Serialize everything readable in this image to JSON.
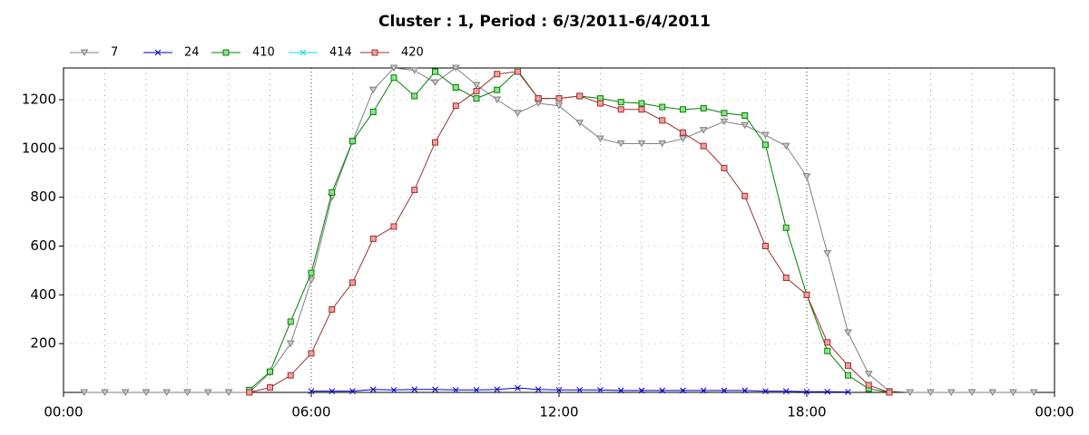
{
  "chart_data": {
    "type": "line",
    "title": "Cluster : 1, Period : 6/3/2011-6/4/2011",
    "x": [
      0.5,
      1,
      1.5,
      2,
      2.5,
      3,
      3.5,
      4,
      4.5,
      5,
      5.5,
      6,
      6.5,
      7,
      7.5,
      8,
      8.5,
      9,
      9.5,
      10,
      10.5,
      11,
      11.5,
      12,
      12.5,
      13,
      13.5,
      14,
      14.5,
      15,
      15.5,
      16,
      16.5,
      17,
      17.5,
      18,
      18.5,
      19,
      19.5,
      20,
      20.5,
      21,
      21.5,
      22,
      22.5,
      23,
      23.5
    ],
    "xlim": [
      0,
      24
    ],
    "xticks": [
      {
        "value": 0,
        "label": "00:00"
      },
      {
        "value": 6,
        "label": "06:00"
      },
      {
        "value": 12,
        "label": "12:00"
      },
      {
        "value": 18,
        "label": "18:00"
      },
      {
        "value": 24,
        "label": "00:00"
      }
    ],
    "x_minor_ticks": [
      1,
      2,
      3,
      4,
      5,
      7,
      8,
      9,
      10,
      11,
      13,
      14,
      15,
      16,
      17,
      19,
      20,
      21,
      22,
      23
    ],
    "ylim": [
      0,
      1330
    ],
    "yticks": [
      200,
      400,
      600,
      800,
      1000,
      1200
    ],
    "grid": true,
    "legend": "top-left",
    "series": [
      {
        "name": "7",
        "color": "#808080",
        "fill": "#c8c8c8",
        "marker": "triangle-down",
        "values": [
          0,
          0,
          0,
          0,
          0,
          0,
          0,
          0,
          0,
          80,
          200,
          460,
          800,
          1030,
          1240,
          1330,
          1320,
          1270,
          1330,
          1260,
          1200,
          1145,
          1185,
          1175,
          1105,
          1040,
          1020,
          1020,
          1020,
          1040,
          1075,
          1110,
          1095,
          1055,
          1010,
          885,
          570,
          245,
          75,
          5,
          0,
          0,
          0,
          0,
          0,
          0,
          0
        ]
      },
      {
        "name": "24",
        "color": "#0000c0",
        "fill": "#0000c0",
        "marker": "x",
        "values": [
          null,
          null,
          null,
          null,
          null,
          null,
          null,
          null,
          null,
          null,
          null,
          5,
          5,
          5,
          12,
          10,
          12,
          12,
          10,
          10,
          12,
          18,
          12,
          10,
          10,
          10,
          8,
          8,
          8,
          8,
          8,
          8,
          8,
          5,
          5,
          3,
          3,
          2,
          null,
          null,
          null,
          null,
          null,
          null,
          null,
          null,
          null
        ]
      },
      {
        "name": "410",
        "color": "#008000",
        "fill": "#90e090",
        "marker": "square",
        "values": [
          null,
          null,
          null,
          null,
          null,
          null,
          null,
          null,
          10,
          85,
          290,
          490,
          820,
          1030,
          1150,
          1290,
          1215,
          1315,
          1250,
          1205,
          1240,
          1320,
          1205,
          1205,
          1215,
          1205,
          1190,
          1185,
          1170,
          1160,
          1165,
          1145,
          1135,
          1015,
          675,
          400,
          170,
          70,
          15,
          0,
          null,
          null,
          null,
          null,
          null,
          null,
          null
        ]
      },
      {
        "name": "414",
        "color": "#00e0e0",
        "fill": "#00e0e0",
        "marker": "x",
        "values": [
          null,
          null,
          null,
          null,
          null,
          null,
          null,
          null,
          null,
          null,
          null,
          null,
          null,
          null,
          null,
          null,
          null,
          null,
          null,
          null,
          null,
          null,
          null,
          null,
          null,
          null,
          null,
          null,
          null,
          null,
          null,
          null,
          null,
          null,
          null,
          null,
          null,
          null,
          null,
          null,
          null,
          null,
          null,
          null,
          null,
          null,
          null
        ]
      },
      {
        "name": "420",
        "color": "#a03030",
        "fill": "#f0a0a0",
        "marker": "square",
        "values": [
          null,
          null,
          null,
          null,
          null,
          null,
          null,
          null,
          0,
          20,
          70,
          160,
          340,
          450,
          630,
          680,
          830,
          1025,
          1175,
          1235,
          1305,
          1315,
          1205,
          1205,
          1215,
          1185,
          1160,
          1160,
          1115,
          1065,
          1010,
          920,
          805,
          600,
          470,
          400,
          205,
          110,
          30,
          0,
          null,
          null,
          null,
          null,
          null,
          null,
          null
        ]
      }
    ]
  }
}
